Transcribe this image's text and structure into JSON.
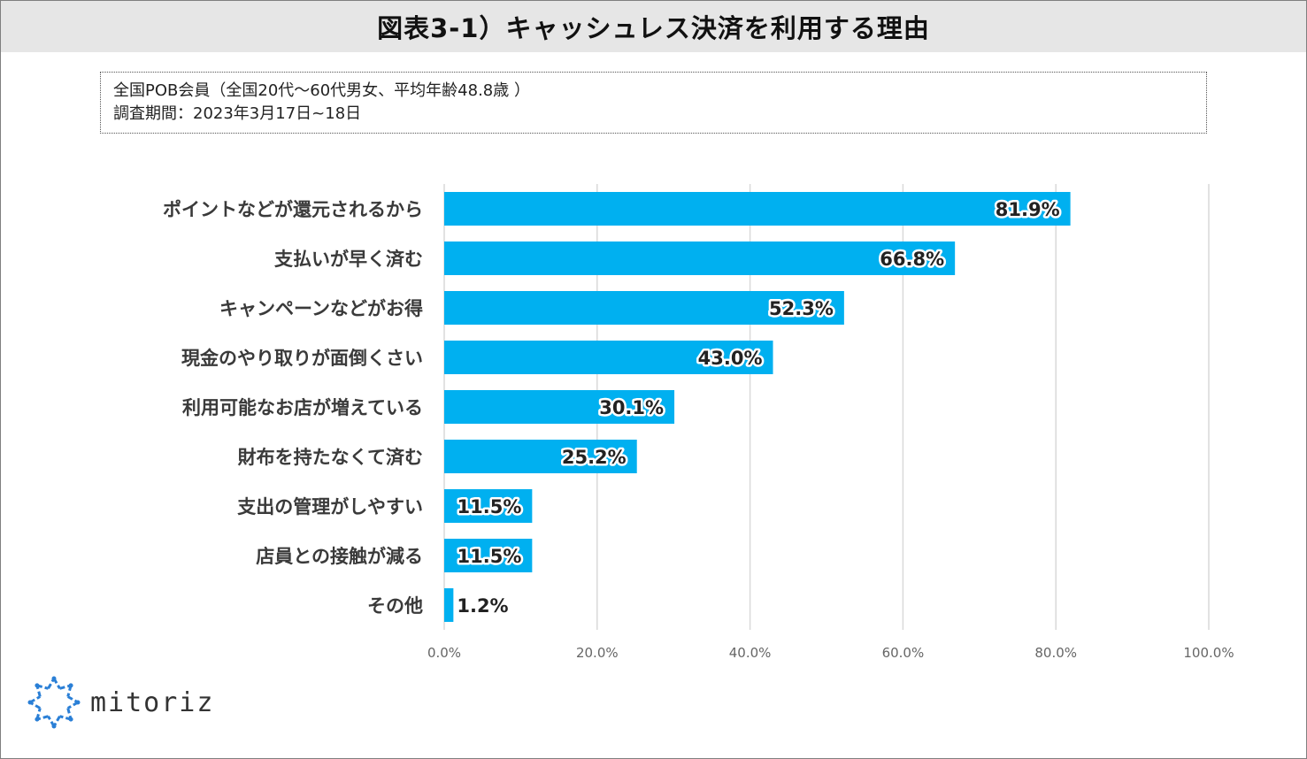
{
  "title": "図表3-1）キャッシュレス決済を利用する理由",
  "note": {
    "line1": "全国POB会員（全国20代～60代男女、平均年齢48.8歳 ）",
    "line2": "調査期間：2023年3月17日~18日"
  },
  "logo": {
    "text": "mitoriz"
  },
  "colors": {
    "bar": "#00b0f0",
    "grid": "#d9d9d9",
    "title_bg": "#e6e6e6",
    "logo_blue": "#2a7fd6"
  },
  "chart_data": {
    "type": "bar",
    "orientation": "horizontal",
    "categories": [
      "ポイントなどが還元されるから",
      "支払いが早く済む",
      "キャンペーンなどがお得",
      "現金のやり取りが面倒くさい",
      "利用可能なお店が増えている",
      "財布を持たなくて済む",
      "支出の管理がしやすい",
      "店員との接触が減る",
      "その他"
    ],
    "values": [
      81.9,
      66.8,
      52.3,
      43.0,
      30.1,
      25.2,
      11.5,
      11.5,
      1.2
    ],
    "value_labels": [
      "81.9%",
      "66.8%",
      "52.3%",
      "43.0%",
      "30.1%",
      "25.2%",
      "11.5%",
      "11.5%",
      "1.2%"
    ],
    "xlim": [
      0,
      100
    ],
    "xticks": [
      0,
      20,
      40,
      60,
      80,
      100
    ],
    "xtick_labels": [
      "0.0%",
      "20.0%",
      "40.0%",
      "60.0%",
      "80.0%",
      "100.0%"
    ],
    "grid": true,
    "legend": "none"
  }
}
